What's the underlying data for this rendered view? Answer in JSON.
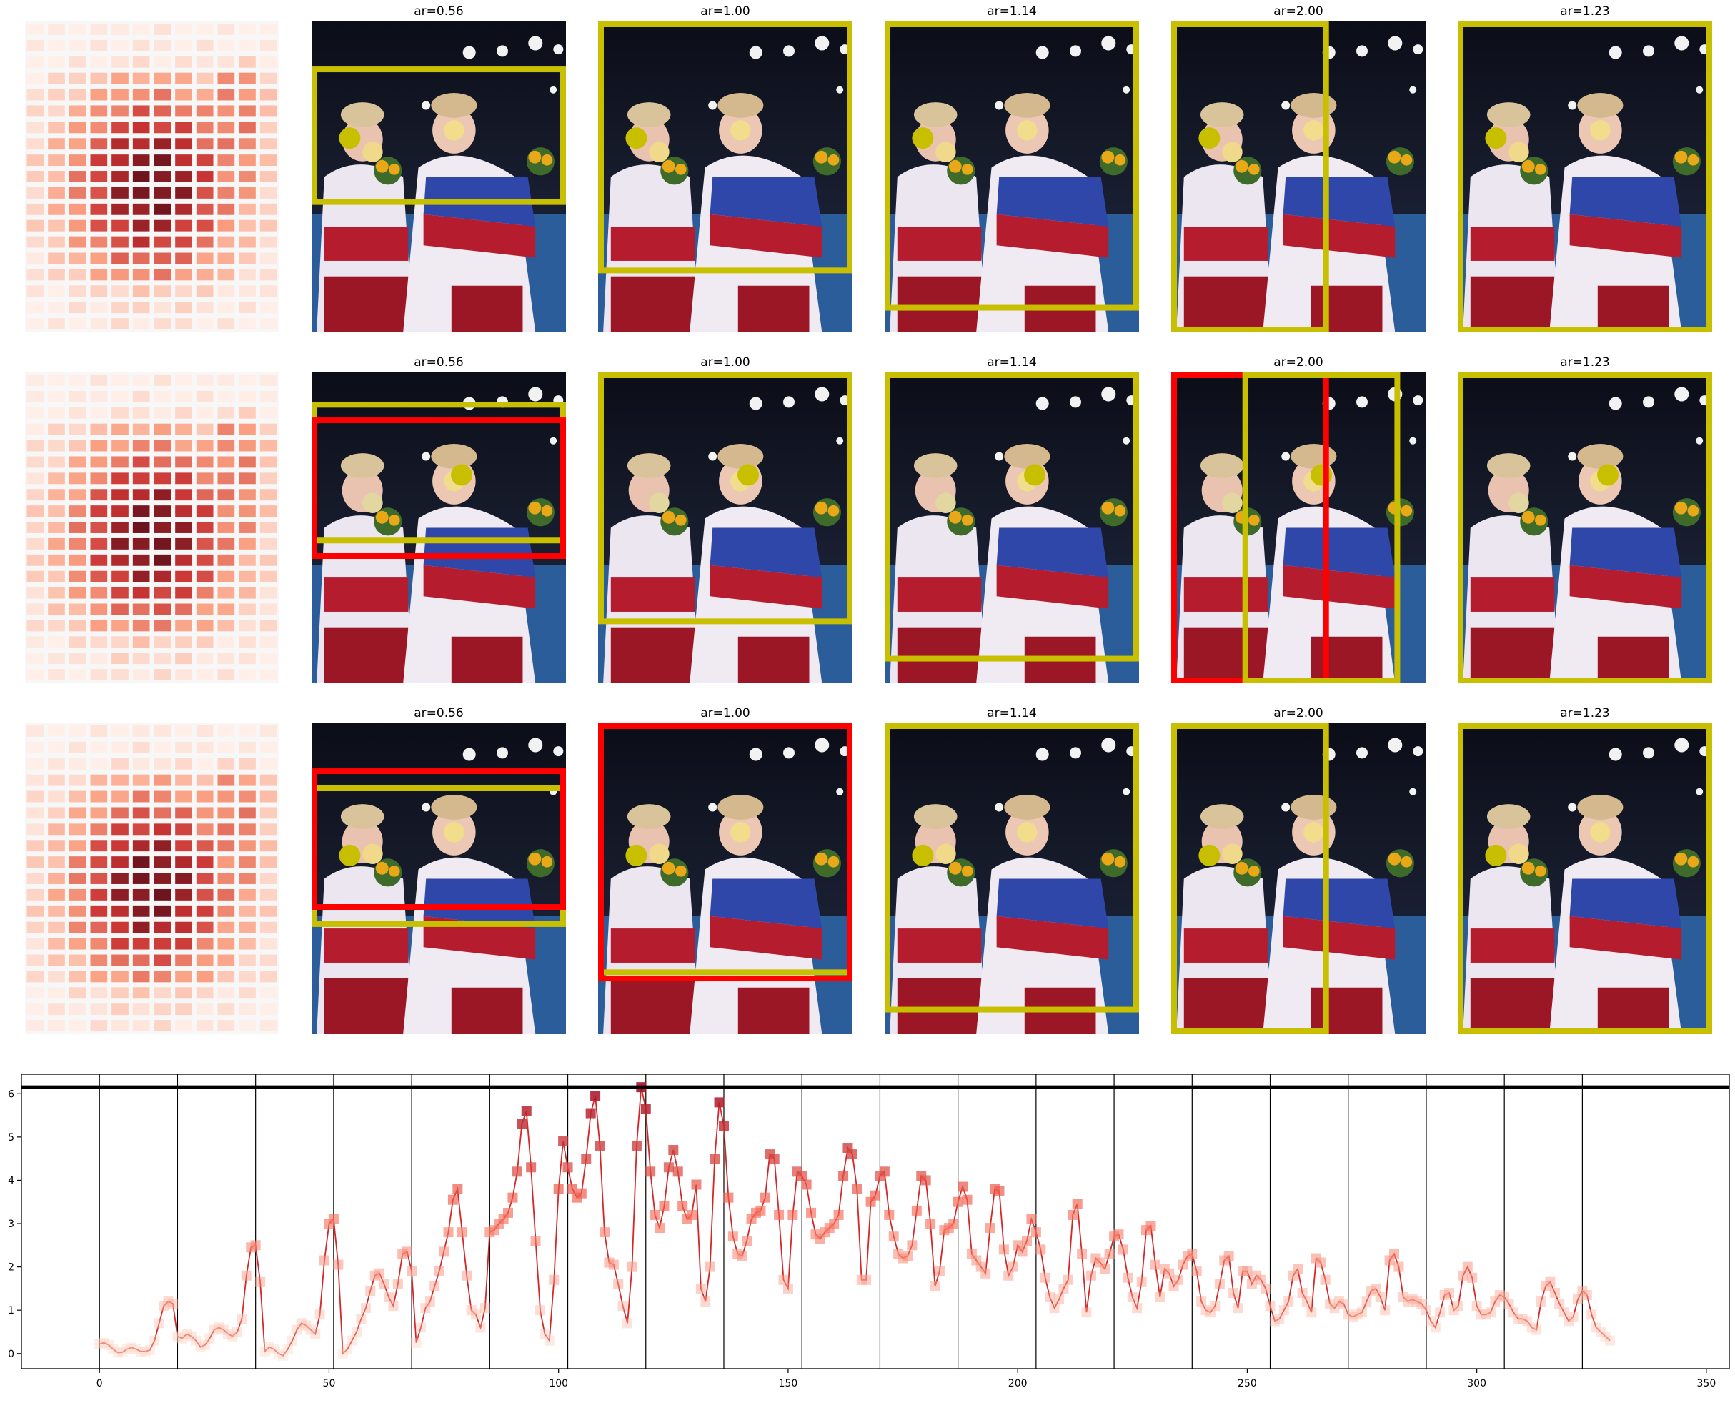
{
  "figure": {
    "rows": [
      {
        "titles": [
          "",
          "ar=0.56",
          "ar=1.00",
          "ar=1.14",
          "ar=2.00",
          "ar=1.23"
        ]
      },
      {
        "titles": [
          "",
          "ar=0.56",
          "ar=1.00",
          "ar=1.14",
          "ar=2.00",
          "ar=1.23"
        ]
      },
      {
        "titles": [
          "",
          "ar=0.56",
          "ar=1.00",
          "ar=1.14",
          "ar=2.00",
          "ar=1.23"
        ]
      }
    ]
  },
  "colors": {
    "box_yellow": "#c8bf00",
    "box_red": "#ff0000",
    "line": "#d62728",
    "threshold": "#000000"
  },
  "chart_data": {
    "type": "line",
    "title": "",
    "xlabel": "",
    "ylabel": "",
    "xlim": [
      -17,
      355
    ],
    "ylim": [
      -0.35,
      6.45
    ],
    "xticks": [
      0,
      50,
      100,
      150,
      200,
      250,
      300,
      350
    ],
    "yticks": [
      0,
      1,
      2,
      3,
      4,
      5,
      6
    ],
    "threshold": 6.15,
    "vertical_lines": [
      0,
      17,
      34,
      51,
      68,
      85,
      102,
      119,
      136,
      153,
      170,
      187,
      204,
      221,
      238,
      255,
      272,
      289,
      306,
      323
    ],
    "grid": false,
    "legend": "none",
    "series": [
      {
        "x_start": 0,
        "values": [
          0.22,
          0.25,
          0.2,
          0.1,
          0.02,
          0.03,
          0.1,
          0.14,
          0.1,
          0.05,
          0.05,
          0.08,
          0.3,
          0.7,
          1.1,
          1.2,
          1.15,
          0.4,
          0.35,
          0.45,
          0.4,
          0.3,
          0.15,
          0.2,
          0.35,
          0.55,
          0.6,
          0.55,
          0.45,
          0.4,
          0.5,
          0.8,
          1.8,
          2.45,
          2.5,
          1.65,
          0.05,
          0.15,
          0.1,
          0.0,
          -0.05,
          0.1,
          0.3,
          0.55,
          0.7,
          0.65,
          0.55,
          0.45,
          0.9,
          2.15,
          3.0,
          3.1,
          2.05,
          0.0,
          0.1,
          0.3,
          0.5,
          0.8,
          1.05,
          1.45,
          1.8,
          1.85,
          1.6,
          1.3,
          1.1,
          1.6,
          2.3,
          2.35,
          1.9,
          0.25,
          0.6,
          1.05,
          1.2,
          1.55,
          1.9,
          2.35,
          2.8,
          3.55,
          3.8,
          2.8,
          1.8,
          1.0,
          0.9,
          0.6,
          1.05,
          2.8,
          2.85,
          3.0,
          3.1,
          3.25,
          3.6,
          4.2,
          5.3,
          5.6,
          4.3,
          2.6,
          1.0,
          0.45,
          0.3,
          1.7,
          3.8,
          4.9,
          4.3,
          3.8,
          3.6,
          3.7,
          4.5,
          5.55,
          5.95,
          4.8,
          2.8,
          2.1,
          2.05,
          1.6,
          1.1,
          0.7,
          2.0,
          4.8,
          6.15,
          5.65,
          4.2,
          3.2,
          2.9,
          3.4,
          4.3,
          4.7,
          4.2,
          3.4,
          3.1,
          3.2,
          3.9,
          1.5,
          1.2,
          2.0,
          4.5,
          5.8,
          5.25,
          3.6,
          2.7,
          2.3,
          2.25,
          2.6,
          3.1,
          3.25,
          3.3,
          3.6,
          4.6,
          4.5,
          3.2,
          1.7,
          1.5,
          3.2,
          4.2,
          4.1,
          3.9,
          3.25,
          2.75,
          2.65,
          2.8,
          2.9,
          3.0,
          3.2,
          4.1,
          4.75,
          4.6,
          3.8,
          1.7,
          1.7,
          3.5,
          3.65,
          4.1,
          4.2,
          3.2,
          2.7,
          2.3,
          2.2,
          2.25,
          2.5,
          3.3,
          4.1,
          4.0,
          3.0,
          1.55,
          1.9,
          2.85,
          2.9,
          3.0,
          3.5,
          3.85,
          3.55,
          2.3,
          2.15,
          2.0,
          1.85,
          2.9,
          3.8,
          3.75,
          2.4,
          1.8,
          2.0,
          2.5,
          2.35,
          2.6,
          3.1,
          2.8,
          2.4,
          1.75,
          1.3,
          1.05,
          1.25,
          1.5,
          1.7,
          3.2,
          3.45,
          2.3,
          0.95,
          1.8,
          2.2,
          2.1,
          1.95,
          2.3,
          2.7,
          2.75,
          2.4,
          1.75,
          1.3,
          1.05,
          1.65,
          2.85,
          2.95,
          2.05,
          1.3,
          1.95,
          1.85,
          1.55,
          1.7,
          2.05,
          2.25,
          2.3,
          1.9,
          1.2,
          1.0,
          0.95,
          1.1,
          1.6,
          2.15,
          2.25,
          1.4,
          1.05,
          1.9,
          1.9,
          1.6,
          1.8,
          1.7,
          1.5,
          1.1,
          0.75,
          0.8,
          1.0,
          1.2,
          1.8,
          1.95,
          1.4,
          1.2,
          0.95,
          2.2,
          2.1,
          1.7,
          1.15,
          1.05,
          1.2,
          1.15,
          0.9,
          0.85,
          0.9,
          0.95,
          1.2,
          1.45,
          1.5,
          1.3,
          1.0,
          2.15,
          2.3,
          2.0,
          1.3,
          1.2,
          1.25,
          1.2,
          1.15,
          1.0,
          0.75,
          0.6,
          0.95,
          1.35,
          1.4,
          1.0,
          1.1,
          1.8,
          2.0,
          1.75,
          1.1,
          0.9,
          0.9,
          0.95,
          1.2,
          1.35,
          1.3,
          1.15,
          0.95,
          0.8,
          0.8,
          0.75,
          0.6,
          0.55,
          1.2,
          1.55,
          1.65,
          1.4,
          1.15,
          0.95,
          0.75,
          0.85,
          1.25,
          1.45,
          1.35,
          0.9,
          0.6,
          0.5,
          0.4,
          0.3
        ]
      }
    ]
  }
}
